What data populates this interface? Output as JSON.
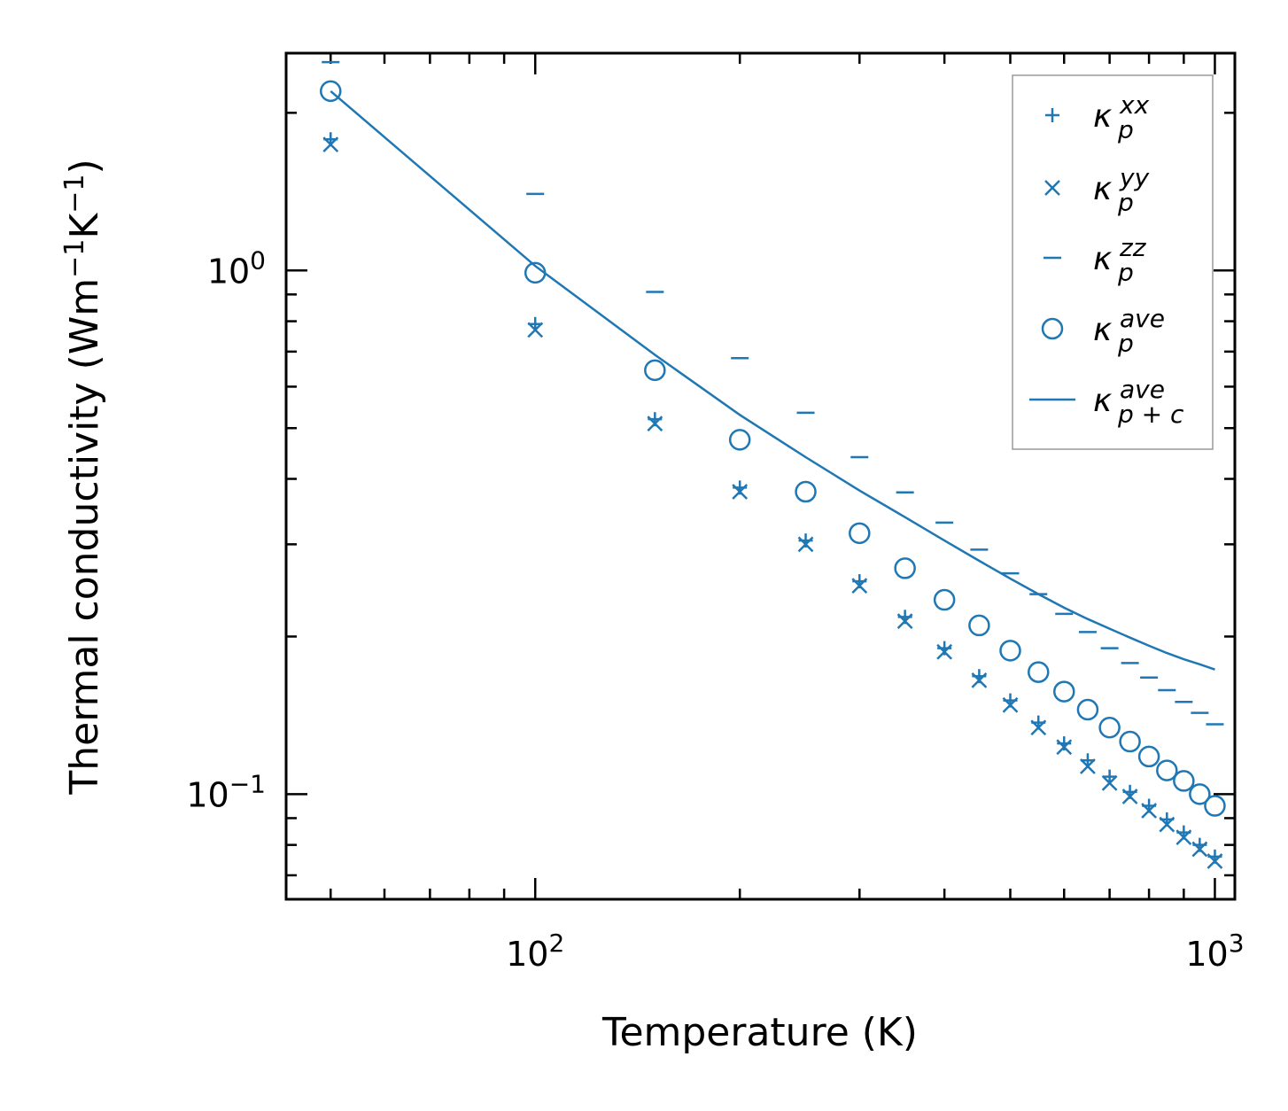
{
  "chart_data": {
    "type": "scatter",
    "xscale": "log",
    "yscale": "log",
    "xlabel": "Temperature (K)",
    "ylabel": "Thermal conductivity (Wm",
    "ylabel_sup1": "−1",
    "ylabel_mid": "K",
    "ylabel_sup2": "−1",
    "ylabel_end": ")",
    "xlim": [
      43,
      1070
    ],
    "ylim": [
      0.063,
      2.6
    ],
    "xticks": [
      {
        "value": 100,
        "base": "10",
        "exp": "2"
      },
      {
        "value": 1000,
        "base": "10",
        "exp": "3"
      }
    ],
    "yticks": [
      {
        "value": 1.0,
        "base": "10",
        "exp": "0"
      },
      {
        "value": 0.1,
        "base": "10",
        "exp": "−1"
      }
    ],
    "color": "#1f77b4",
    "x": [
      50,
      100,
      150,
      200,
      250,
      300,
      350,
      400,
      450,
      500,
      550,
      600,
      650,
      700,
      750,
      800,
      850,
      900,
      950,
      1000
    ],
    "series": [
      {
        "name": "kxx",
        "marker": "plus",
        "values": [
          1.78,
          0.79,
          0.52,
          0.385,
          0.305,
          0.255,
          0.218,
          0.19,
          0.168,
          0.151,
          0.137,
          0.125,
          0.116,
          0.108,
          0.101,
          0.095,
          0.0895,
          0.0845,
          0.08,
          0.076
        ]
      },
      {
        "name": "kyy",
        "marker": "x",
        "values": [
          1.74,
          0.77,
          0.51,
          0.378,
          0.3,
          0.25,
          0.214,
          0.187,
          0.165,
          0.148,
          0.134,
          0.123,
          0.113,
          0.105,
          0.099,
          0.093,
          0.0875,
          0.0827,
          0.0785,
          0.0745
        ]
      },
      {
        "name": "kzz",
        "marker": "hline",
        "values": [
          2.5,
          1.4,
          0.91,
          0.68,
          0.535,
          0.44,
          0.377,
          0.33,
          0.293,
          0.264,
          0.241,
          0.221,
          0.204,
          0.19,
          0.178,
          0.167,
          0.158,
          0.15,
          0.143,
          0.136
        ]
      },
      {
        "name": "kave",
        "marker": "circle",
        "values": [
          2.2,
          0.99,
          0.645,
          0.475,
          0.378,
          0.315,
          0.27,
          0.235,
          0.21,
          0.188,
          0.171,
          0.157,
          0.145,
          0.134,
          0.126,
          0.118,
          0.111,
          0.106,
          0.1,
          0.095
        ]
      },
      {
        "name": "kc",
        "marker": "line",
        "values": [
          2.2,
          1.02,
          0.69,
          0.53,
          0.44,
          0.38,
          0.338,
          0.305,
          0.279,
          0.258,
          0.241,
          0.227,
          0.216,
          0.207,
          0.199,
          0.192,
          0.186,
          0.181,
          0.177,
          0.173
        ]
      }
    ],
    "legend": {
      "position": "top-right",
      "entries": [
        {
          "marker": "plus",
          "base": "κ",
          "sup": "xx",
          "sub": "p"
        },
        {
          "marker": "x",
          "base": "κ",
          "sup": "yy",
          "sub": "p"
        },
        {
          "marker": "hline",
          "base": "κ",
          "sup": "zz",
          "sub": "p"
        },
        {
          "marker": "circle",
          "base": "κ",
          "sup": "ave",
          "sub": "p"
        },
        {
          "marker": "line",
          "base": "κ",
          "sup": "ave",
          "sub": "p + c"
        }
      ]
    }
  }
}
